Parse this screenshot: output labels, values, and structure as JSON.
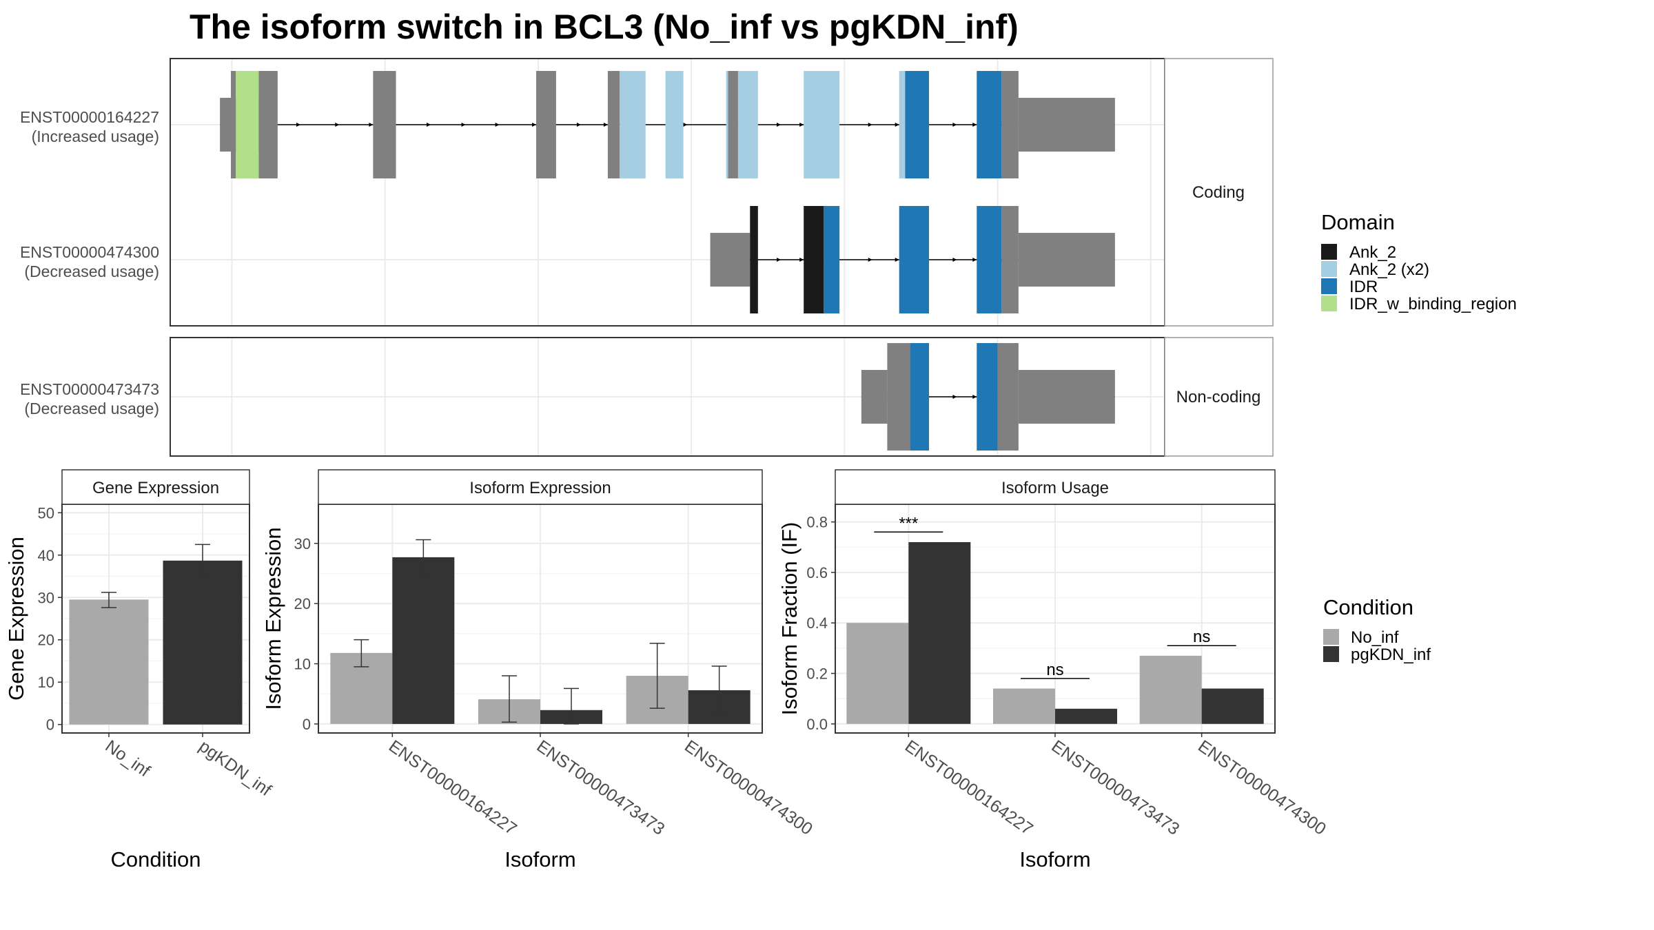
{
  "title": "The isoform switch in BCL3 (No_inf vs pgKDN_inf)",
  "colors": {
    "exon": "#808080",
    "Ank_2": "#1a1a1a",
    "Ank_2 (x2)": "#a6cee3",
    "IDR": "#1f78b4",
    "IDR_w_binding_region": "#b2df8a",
    "No_inf": "#a9a9a9",
    "pgKDN_inf": "#333333"
  },
  "transcript_panels": [
    {
      "label": "Coding",
      "tracks": [
        {
          "id": "ENST00000164227",
          "usage": "(Increased usage)",
          "utr_left": [
            50,
            91
          ],
          "utr_right": [
            853,
            950
          ],
          "cds": [
            {
              "start": 61,
              "end": 108,
              "segments": [
                {
                  "start": 61,
                  "end": 66,
                  "fill": "exon"
                },
                {
                  "start": 66,
                  "end": 89,
                  "fill": "IDR_w_binding_region"
                },
                {
                  "start": 89,
                  "end": 108,
                  "fill": "exon"
                }
              ]
            },
            {
              "start": 204,
              "end": 227,
              "segments": [
                {
                  "start": 204,
                  "end": 227,
                  "fill": "exon"
                }
              ]
            },
            {
              "start": 368,
              "end": 388,
              "segments": [
                {
                  "start": 368,
                  "end": 388,
                  "fill": "exon"
                }
              ]
            },
            {
              "start": 440,
              "end": 478,
              "segments": [
                {
                  "start": 440,
                  "end": 452,
                  "fill": "exon"
                },
                {
                  "start": 452,
                  "end": 478,
                  "fill": "Ank_2 (x2)"
                }
              ]
            },
            {
              "start": 498,
              "end": 516,
              "segments": [
                {
                  "start": 498,
                  "end": 516,
                  "fill": "Ank_2 (x2)"
                }
              ]
            },
            {
              "start": 559,
              "end": 591,
              "segments": [
                {
                  "start": 559,
                  "end": 561,
                  "fill": "Ank_2 (x2)"
                },
                {
                  "start": 561,
                  "end": 571,
                  "fill": "exon"
                },
                {
                  "start": 571,
                  "end": 591,
                  "fill": "Ank_2 (x2)"
                }
              ]
            },
            {
              "start": 637,
              "end": 673,
              "segments": [
                {
                  "start": 637,
                  "end": 673,
                  "fill": "Ank_2 (x2)"
                }
              ]
            },
            {
              "start": 733,
              "end": 763,
              "segments": [
                {
                  "start": 733,
                  "end": 739,
                  "fill": "Ank_2 (x2)"
                },
                {
                  "start": 739,
                  "end": 763,
                  "fill": "IDR"
                }
              ]
            },
            {
              "start": 811,
              "end": 853,
              "segments": [
                {
                  "start": 811,
                  "end": 836,
                  "fill": "IDR"
                },
                {
                  "start": 836,
                  "end": 853,
                  "fill": "exon"
                }
              ]
            }
          ],
          "arrows": [
            108,
            131,
            170,
            204,
            262,
            297,
            331,
            368,
            413,
            440,
            520,
            591,
            614,
            637,
            706,
            733,
            791,
            811
          ]
        },
        {
          "id": "ENST00000474300",
          "usage": "(Decreased usage)",
          "utr_left": [
            543,
            583
          ],
          "utr_right": [
            853,
            950
          ],
          "cds": [
            {
              "start": 583,
              "end": 591,
              "segments": [
                {
                  "start": 583,
                  "end": 591,
                  "fill": "Ank_2"
                }
              ]
            },
            {
              "start": 637,
              "end": 673,
              "segments": [
                {
                  "start": 637,
                  "end": 657,
                  "fill": "Ank_2"
                },
                {
                  "start": 657,
                  "end": 673,
                  "fill": "IDR"
                }
              ]
            },
            {
              "start": 733,
              "end": 763,
              "segments": [
                {
                  "start": 733,
                  "end": 763,
                  "fill": "IDR"
                }
              ]
            },
            {
              "start": 811,
              "end": 853,
              "segments": [
                {
                  "start": 811,
                  "end": 836,
                  "fill": "IDR"
                },
                {
                  "start": 836,
                  "end": 853,
                  "fill": "exon"
                }
              ]
            }
          ],
          "arrows": [
            614,
            637,
            706,
            733,
            791,
            811
          ]
        }
      ]
    },
    {
      "label": "Non-coding",
      "tracks": [
        {
          "id": "ENST00000473473",
          "usage": "(Decreased usage)",
          "utr_left": [
            695,
            721
          ],
          "utr_right": [
            853,
            950
          ],
          "cds": [
            {
              "start": 721,
              "end": 763,
              "segments": [
                {
                  "start": 721,
                  "end": 744,
                  "fill": "exon"
                },
                {
                  "start": 744,
                  "end": 763,
                  "fill": "IDR"
                }
              ]
            },
            {
              "start": 811,
              "end": 853,
              "segments": [
                {
                  "start": 811,
                  "end": 832,
                  "fill": "IDR"
                },
                {
                  "start": 832,
                  "end": 853,
                  "fill": "exon"
                }
              ]
            }
          ],
          "arrows": [
            791,
            811
          ]
        }
      ]
    }
  ],
  "domain_legend": {
    "title": "Domain",
    "items": [
      "Ank_2",
      "Ank_2 (x2)",
      "IDR",
      "IDR_w_binding_region"
    ]
  },
  "condition_legend": {
    "title": "Condition",
    "items": [
      "No_inf",
      "pgKDN_inf"
    ]
  },
  "chart_data": [
    {
      "type": "bar",
      "title": "Gene Expression",
      "xlabel": "Condition",
      "ylabel": "Gene Expression",
      "categories": [
        "No_inf",
        "pgKDN_inf"
      ],
      "ylim": [
        -2,
        52
      ],
      "yticks": [
        0,
        10,
        20,
        30,
        40,
        50
      ],
      "series": [
        {
          "name": "No_inf",
          "values": [
            29.5,
            null
          ],
          "errors": [
            [
              27.6,
              31.2
            ],
            null
          ]
        },
        {
          "name": "pgKDN_inf",
          "values": [
            null,
            38.7
          ],
          "errors": [
            null,
            [
              35.0,
              42.5
            ]
          ]
        }
      ],
      "grid": true
    },
    {
      "type": "bar",
      "title": "Isoform Expression",
      "xlabel": "Isoform",
      "ylabel": "Isoform Expression",
      "categories": [
        "ENST00000164227",
        "ENST00000473473",
        "ENST00000474300"
      ],
      "ylim": [
        -1.5,
        36.5
      ],
      "yticks": [
        0,
        10,
        20,
        30
      ],
      "series": [
        {
          "name": "No_inf",
          "values": [
            11.8,
            4.1,
            8.0
          ],
          "errors": [
            [
              9.5,
              14.0
            ],
            [
              0.3,
              8.0
            ],
            [
              2.6,
              13.4
            ]
          ]
        },
        {
          "name": "pgKDN_inf",
          "values": [
            27.7,
            2.3,
            5.6
          ],
          "errors": [
            [
              24.7,
              30.6
            ],
            [
              0.0,
              5.9
            ],
            [
              1.6,
              9.6
            ]
          ]
        }
      ],
      "grid": true
    },
    {
      "type": "bar",
      "title": "Isoform Usage",
      "xlabel": "Isoform",
      "ylabel": "Isoform Fraction (IF)",
      "categories": [
        "ENST00000164227",
        "ENST00000473473",
        "ENST00000474300"
      ],
      "ylim": [
        -0.036,
        0.87
      ],
      "yticks": [
        "0.0",
        "0.2",
        "0.4",
        "0.6",
        "0.8"
      ],
      "series": [
        {
          "name": "No_inf",
          "values": [
            0.4,
            0.14,
            0.27
          ]
        },
        {
          "name": "pgKDN_inf",
          "values": [
            0.72,
            0.06,
            0.14
          ]
        }
      ],
      "significance": [
        {
          "label": "***",
          "y": 0.76
        },
        {
          "label": "ns",
          "y": 0.18
        },
        {
          "label": "ns",
          "y": 0.31
        }
      ],
      "grid": true
    }
  ]
}
